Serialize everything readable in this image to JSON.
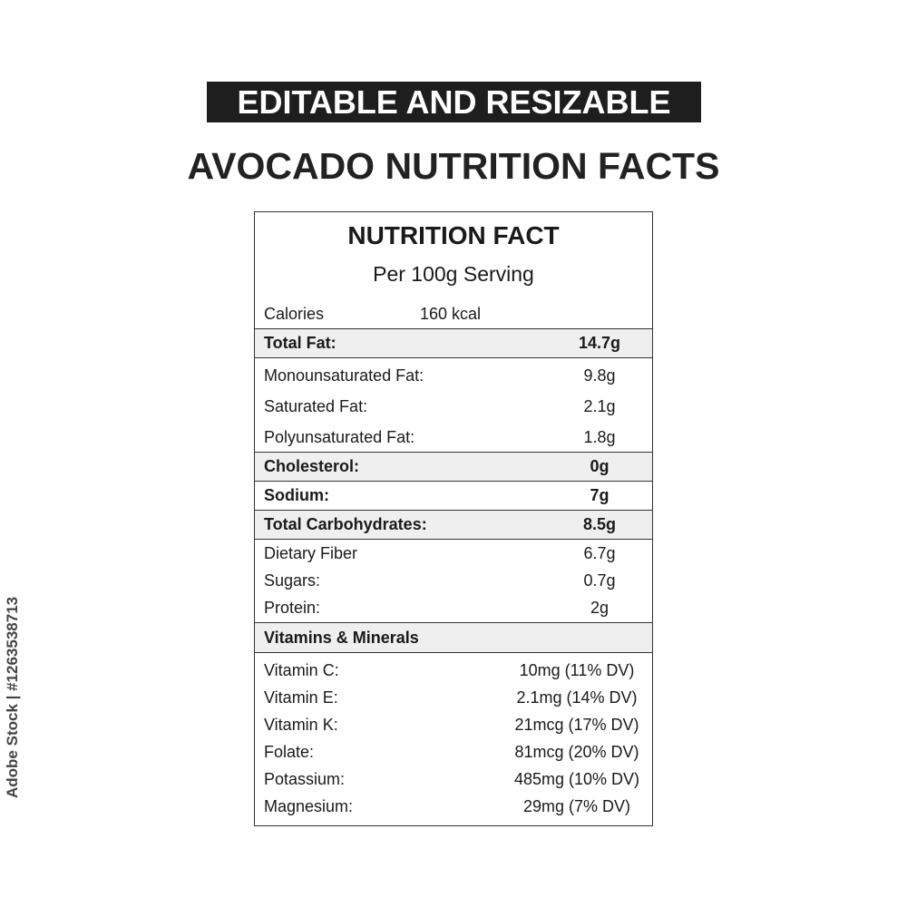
{
  "banner": "EDITABLE AND RESIZABLE",
  "title": "AVOCADO NUTRITION FACTS",
  "label": {
    "heading": "NUTRITION FACT",
    "serving": "Per 100g Serving",
    "calories_label": "Calories",
    "calories_value": "160 kcal",
    "total_fat": {
      "name": "Total Fat:",
      "value": "14.7g"
    },
    "fats": [
      {
        "name": "Monounsaturated Fat:",
        "value": "9.8g"
      },
      {
        "name": "Saturated Fat:",
        "value": "2.1g"
      },
      {
        "name": "Polyunsaturated Fat:",
        "value": "1.8g"
      }
    ],
    "cholesterol": {
      "name": "Cholesterol:",
      "value": "0g"
    },
    "sodium": {
      "name": "Sodium:",
      "value": "7g"
    },
    "carbs": {
      "name": "Total Carbohydrates:",
      "value": "8.5g"
    },
    "carb_items": [
      {
        "name": "Dietary Fiber",
        "value": "6.7g"
      },
      {
        "name": "Sugars:",
        "value": "0.7g"
      },
      {
        "name": "Protein:",
        "value": "2g"
      }
    ],
    "vitamins_header": "Vitamins & Minerals",
    "vitamins": [
      {
        "name": "Vitamin C:",
        "value": "10mg (11% DV)"
      },
      {
        "name": "Vitamin E:",
        "value": "2.1mg (14% DV)"
      },
      {
        "name": "Vitamin K:",
        "value": "21mcg (17% DV)"
      },
      {
        "name": "Folate:",
        "value": "81mcg (20% DV)"
      },
      {
        "name": "Potassium:",
        "value": "485mg (10% DV)"
      },
      {
        "name": "Magnesium:",
        "value": "29mg (7% DV)"
      }
    ]
  },
  "watermark": "Adobe Stock | #1263538713"
}
